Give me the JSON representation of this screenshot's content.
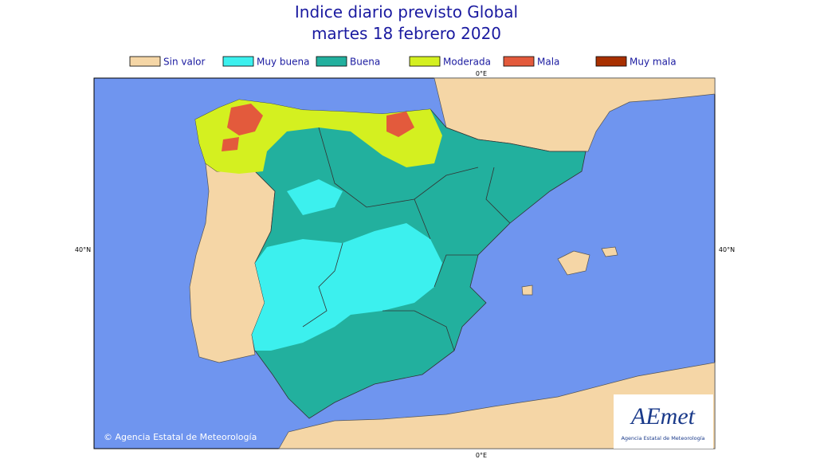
{
  "title": "Indice diario previsto Global",
  "subtitle": "martes 18 febrero 2020",
  "legend": [
    {
      "label": "Sin valor",
      "color": "#f5d6a6"
    },
    {
      "label": "Muy buena",
      "color": "#3cf0ee"
    },
    {
      "label": "Buena",
      "color": "#22b09e"
    },
    {
      "label": "Moderada",
      "color": "#d4f020"
    },
    {
      "label": "Mala",
      "color": "#e35a3c"
    },
    {
      "label": "Muy mala",
      "color": "#a83000"
    }
  ],
  "axis_labels": {
    "top": "0°E",
    "bottom": "0°E",
    "left": "40°N",
    "right": "40°N"
  },
  "copyright": "© Agencia Estatal de Meteorología",
  "logo": {
    "name": "AEmet",
    "caption": "Agencia Estatal de Meteorología"
  }
}
